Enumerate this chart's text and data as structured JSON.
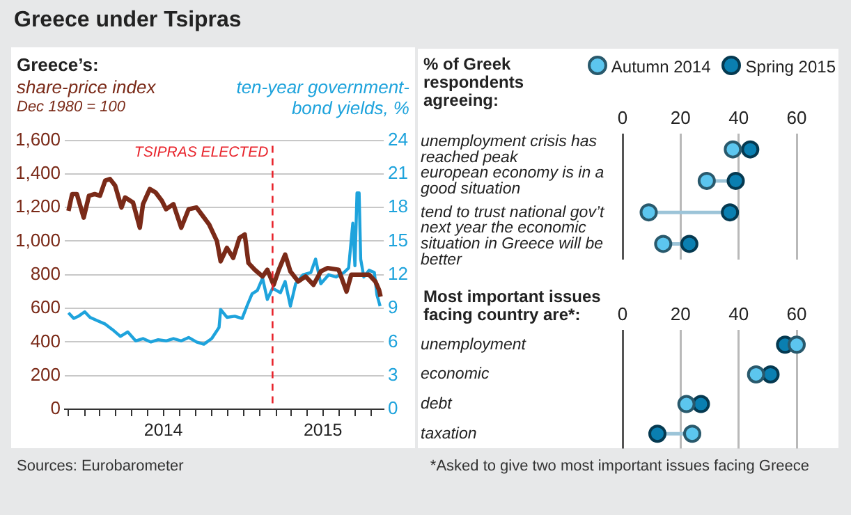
{
  "chart_data": [
    {
      "type": "line",
      "title": "Greece under Tsipras",
      "subtitle": "Greece’s:",
      "ylabel": "share-price index",
      "y2label": "ten-year government-bond yields, %",
      "annotations": [
        "Dec 1980 = 100",
        "Sources: Eurobarometer"
      ],
      "series": [
        {
          "color": "#7a2a18",
          "x": [
            "2014-01-01",
            "2014-01-08",
            "2014-01-17",
            "2014-01-30",
            "2014-02-09",
            "2014-02-20",
            "2014-03-02",
            "2014-03-12",
            "2014-03-21",
            "2014-03-31",
            "2014-04-12",
            "2014-04-19",
            "2014-05-04",
            "2014-05-17",
            "2014-05-23",
            "2014-06-05",
            "2014-06-16",
            "2014-06-28",
            "2014-07-06",
            "2014-07-20",
            "2014-08-04",
            "2014-08-18",
            "2014-09-02",
            "2014-09-14",
            "2014-09-26",
            "2014-10-11",
            "2014-10-18",
            "2014-10-30",
            "2014-11-11",
            "2014-11-23",
            "2014-12-03",
            "2014-12-10",
            "2014-12-22",
            "2015-01-06",
            "2015-01-15",
            "2015-01-27",
            "2015-02-06",
            "2015-02-18",
            "2015-02-28",
            "2015-03-15",
            "2015-03-29",
            "2015-04-13",
            "2015-04-27",
            "2015-05-10",
            "2015-05-31",
            "2015-06-15",
            "2015-06-24",
            "2015-07-09",
            "2015-07-28",
            "2015-08-09",
            "2015-08-16",
            "2015-08-19"
          ],
          "values": [
            1180,
            1280,
            1280,
            1140,
            1270,
            1280,
            1270,
            1360,
            1370,
            1330,
            1200,
            1260,
            1230,
            1080,
            1220,
            1310,
            1290,
            1240,
            1190,
            1220,
            1080,
            1190,
            1200,
            1150,
            1100,
            1000,
            880,
            960,
            900,
            1020,
            1040,
            870,
            830,
            790,
            830,
            740,
            830,
            920,
            820,
            760,
            790,
            740,
            820,
            840,
            830,
            700,
            800,
            800,
            800,
            760,
            710,
            670
          ]
        },
        {
          "color": "#1ea3dc",
          "axis": "y2",
          "x": [
            "2014-01-01",
            "2014-01-11",
            "2014-01-20",
            "2014-02-01",
            "2014-02-11",
            "2014-02-25",
            "2014-03-12",
            "2014-03-26",
            "2014-04-10",
            "2014-04-24",
            "2014-05-09",
            "2014-05-23",
            "2014-06-07",
            "2014-06-21",
            "2014-07-06",
            "2014-07-20",
            "2014-08-04",
            "2014-08-18",
            "2014-09-02",
            "2014-09-16",
            "2014-10-01",
            "2014-10-15",
            "2014-10-18",
            "2014-10-30",
            "2014-11-14",
            "2014-11-28",
            "2014-12-08",
            "2014-12-17",
            "2014-12-27",
            "2015-01-06",
            "2015-01-15",
            "2015-01-25",
            "2015-02-09",
            "2015-02-18",
            "2015-02-28",
            "2015-03-10",
            "2015-03-24",
            "2015-04-08",
            "2015-04-17",
            "2015-04-27",
            "2015-05-12",
            "2015-05-26",
            "2015-06-10",
            "2015-06-19",
            "2015-06-27",
            "2015-07-01",
            "2015-07-05",
            "2015-07-09",
            "2015-07-12",
            "2015-07-18",
            "2015-07-28",
            "2015-08-07",
            "2015-08-12",
            "2015-08-18"
          ],
          "values": [
            8.6,
            8.1,
            8.3,
            8.7,
            8.2,
            7.9,
            7.6,
            7.1,
            6.5,
            6.9,
            6.1,
            6.3,
            6.0,
            6.2,
            6.1,
            6.3,
            6.1,
            6.4,
            6.0,
            5.8,
            6.3,
            7.3,
            8.9,
            8.2,
            8.3,
            8.1,
            9.3,
            10.3,
            10.6,
            11.7,
            9.8,
            10.8,
            10.4,
            11.4,
            9.2,
            11.2,
            12.0,
            12.2,
            13.4,
            11.2,
            12.0,
            11.8,
            12.2,
            12.6,
            16.6,
            12.8,
            19.3,
            19.3,
            13.4,
            11.8,
            12.4,
            12.2,
            10.2,
            9.2
          ]
        }
      ],
      "xlim": [
        "2013-12-25",
        "2015-08-25"
      ],
      "xticks": [
        {
          "value": "2014-01-01",
          "label": null
        },
        {
          "value": "2014-02-01",
          "label": null
        },
        {
          "value": "2014-03-01",
          "label": null
        },
        {
          "value": "2014-04-01",
          "label": null
        },
        {
          "value": "2014-05-01",
          "label": null
        },
        {
          "value": "2014-06-01",
          "label": null
        },
        {
          "value": "2014-07-01",
          "label": "2014"
        },
        {
          "value": "2014-08-01",
          "label": null
        },
        {
          "value": "2014-09-01",
          "label": null
        },
        {
          "value": "2014-10-01",
          "label": null
        },
        {
          "value": "2014-11-01",
          "label": null
        },
        {
          "value": "2014-12-01",
          "label": null
        },
        {
          "value": "2015-01-01",
          "label": null
        },
        {
          "value": "2015-02-01",
          "label": null
        },
        {
          "value": "2015-03-01",
          "label": null
        },
        {
          "value": "2015-04-01",
          "label": null
        },
        {
          "value": "2015-05-01",
          "label": "2015"
        },
        {
          "value": "2015-06-01",
          "label": null
        },
        {
          "value": "2015-07-01",
          "label": null
        },
        {
          "value": "2015-08-01",
          "label": null
        }
      ],
      "ylim": [
        0,
        1600
      ],
      "yticks": [
        0,
        200,
        400,
        600,
        800,
        {
          "value": 1000,
          "label": "1,000"
        },
        {
          "value": 1200,
          "label": "1,200"
        },
        {
          "value": 1400,
          "label": "1,400"
        },
        {
          "value": 1600,
          "label": "1,600"
        }
      ],
      "y2lim": [
        0,
        24
      ],
      "y2ticks": [
        0,
        3,
        6,
        9,
        12,
        15,
        18,
        21,
        24
      ],
      "grid": "y",
      "legend": false,
      "marker": "none",
      "line_style": "solid",
      "ref_lines": [
        {
          "axis": "x",
          "value": "2015-01-25",
          "label": "TSIPRAS ELECTED",
          "color": "#e8232b",
          "line_style": "dashed"
        }
      ]
    },
    {
      "type": "scatter",
      "orientation": "horizontal",
      "title": "% of Greek respondents agreeing:",
      "categories": [
        "unemployment crisis has reached peak",
        "european economy is in a good situation",
        "tend to trust national gov’t",
        "next year the economic situation in Greece will be better"
      ],
      "series": [
        {
          "name": "Autumn 2014",
          "color": "#5cc6ef",
          "values": [
            38,
            29,
            9,
            14
          ]
        },
        {
          "name": "Spring 2015",
          "color": "#0a7fb1",
          "values": [
            44,
            39,
            37,
            23
          ]
        }
      ],
      "xlim": [
        0,
        60
      ],
      "xticks": [
        0,
        20,
        40,
        60
      ],
      "grid": "x",
      "legend": "top right",
      "marker": "circle"
    },
    {
      "type": "scatter",
      "orientation": "horizontal",
      "title": "Most important issues facing country are*:",
      "annotations": [
        "*Asked to give two most important issues facing Greece"
      ],
      "categories": [
        "unemployment",
        "economic",
        "debt",
        "taxation"
      ],
      "series": [
        {
          "color": "#5cc6ef",
          "values": [
            60,
            46,
            22,
            24
          ]
        },
        {
          "color": "#0a7fb1",
          "values": [
            56,
            51,
            27,
            12
          ]
        }
      ],
      "xlim": [
        0,
        60
      ],
      "xticks": [
        0,
        20,
        40,
        60
      ],
      "grid": "x",
      "legend": false,
      "marker": "circle"
    }
  ]
}
